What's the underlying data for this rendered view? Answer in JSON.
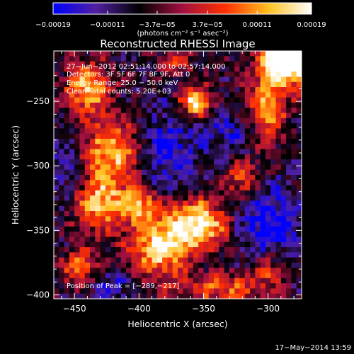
{
  "chart_data": {
    "type": "heatmap",
    "title": "Reconstructed RHESSI Image",
    "xlabel": "Heliocentric X (arcsec)",
    "ylabel": "Heliocentric Y (arcsec)",
    "xlim": [
      -466,
      -274
    ],
    "ylim": [
      -403,
      -211
    ],
    "x_ticks": [
      -450,
      -400,
      -350,
      -300
    ],
    "y_ticks": [
      -400,
      -350,
      -300,
      -250
    ],
    "x_tick_labels": [
      "−450",
      "−400",
      "−350",
      "−300"
    ],
    "y_tick_labels": [
      "−400",
      "−350",
      "−300",
      "−250"
    ],
    "colorbar": {
      "range": [
        -0.00019,
        0.00019
      ],
      "tick_values": [
        -0.00019,
        -0.00011,
        -3.7e-05,
        3.7e-05,
        0.00011,
        0.00019
      ],
      "tick_labels": [
        "−0.00019",
        "−0.00011",
        "−3.7e−05",
        "3.7e−05",
        "0.00011",
        "0.00019"
      ],
      "units_label": "(photons cm⁻² s⁻¹ asec⁻²)",
      "colormap": [
        "#0000ff",
        "#5020a0",
        "#000000",
        "#a01040",
        "#ff3000",
        "#ffc020",
        "#ffffff"
      ]
    },
    "info_lines": [
      "27−Jun−2012 02:51:14.000 to 02:57:14.000",
      "Detectors: 3F 5F 6F 7F 8F 9F, Att 0",
      "Energy Range: 25.0 − 50.0 keV",
      "Clean     Total counts: 5.20E+03"
    ],
    "peak_label": "Position of Peak = [−289,−217]",
    "peak_position": [
      -289,
      -217
    ],
    "grid": false,
    "hotspots": [
      {
        "x": -275,
        "y": -222,
        "amp": 1.0,
        "sx": 14,
        "sy": 12
      },
      {
        "x": -290,
        "y": -217,
        "amp": 0.9,
        "sx": 10,
        "sy": 8
      },
      {
        "x": -356,
        "y": -250,
        "amp": 0.95,
        "sx": 8,
        "sy": 8
      },
      {
        "x": -440,
        "y": -240,
        "amp": 0.75,
        "sx": 12,
        "sy": 14
      },
      {
        "x": -420,
        "y": -290,
        "amp": 0.8,
        "sx": 16,
        "sy": 18
      },
      {
        "x": -430,
        "y": -330,
        "amp": 0.7,
        "sx": 14,
        "sy": 14
      },
      {
        "x": -300,
        "y": -250,
        "amp": 0.7,
        "sx": 10,
        "sy": 22
      },
      {
        "x": -320,
        "y": -310,
        "amp": 0.55,
        "sx": 10,
        "sy": 10
      },
      {
        "x": -355,
        "y": -345,
        "amp": 0.95,
        "sx": 18,
        "sy": 14
      },
      {
        "x": -385,
        "y": -365,
        "amp": 0.8,
        "sx": 16,
        "sy": 16
      },
      {
        "x": -400,
        "y": -330,
        "amp": 0.65,
        "sx": 10,
        "sy": 10
      },
      {
        "x": -445,
        "y": -378,
        "amp": 0.6,
        "sx": 10,
        "sy": 10
      },
      {
        "x": -372,
        "y": -220,
        "amp": 0.35,
        "sx": 10,
        "sy": 8
      },
      {
        "x": -335,
        "y": -395,
        "amp": 0.55,
        "sx": 22,
        "sy": 8
      },
      {
        "x": -300,
        "y": -380,
        "amp": 0.45,
        "sx": 10,
        "sy": 10
      }
    ],
    "coldspots": [
      {
        "x": -380,
        "y": -290,
        "amp": 0.6,
        "sx": 18,
        "sy": 22
      },
      {
        "x": -300,
        "y": -345,
        "amp": 0.65,
        "sx": 20,
        "sy": 22
      },
      {
        "x": -455,
        "y": -300,
        "amp": 0.45,
        "sx": 8,
        "sy": 18
      },
      {
        "x": -420,
        "y": -392,
        "amp": 0.45,
        "sx": 14,
        "sy": 8
      },
      {
        "x": -330,
        "y": -275,
        "amp": 0.4,
        "sx": 12,
        "sy": 12
      }
    ]
  },
  "footer": {
    "date": "17−May−2014 13:59"
  }
}
